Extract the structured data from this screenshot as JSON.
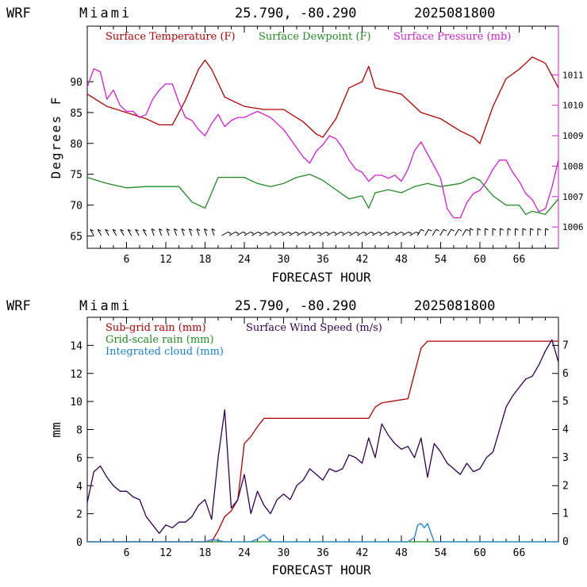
{
  "header": {
    "model": "WRF",
    "location": "Miami",
    "coords": "25.790, -80.290",
    "date": "2025081800"
  },
  "colors": {
    "temperature": "#b00000",
    "dewpoint": "#228b22",
    "pressure": "#d020d0",
    "subgrid_rain": "#b00000",
    "gridscale_rain": "#228b22",
    "cloud": "#1e7fd0",
    "wind": "#300050"
  },
  "chart_data": [
    {
      "type": "line",
      "title": "",
      "xlabel": "FORECAST HOUR",
      "ylabel": "Degrees F",
      "y2label": "",
      "xlim": [
        0,
        72
      ],
      "ylim": [
        63,
        99
      ],
      "y2lim": [
        1005.3,
        1012.6
      ],
      "xticks": [
        "6",
        "12",
        "18",
        "24",
        "30",
        "36",
        "42",
        "48",
        "54",
        "60",
        "66"
      ],
      "yticks": [
        "65",
        "70",
        "75",
        "80",
        "85",
        "90"
      ],
      "y2ticks": [
        "1006",
        "1007",
        "1008",
        "1009",
        "1010",
        "1011"
      ],
      "legend": [
        "Surface Temperature (F)",
        "Surface Dewpoint (F)",
        "Surface Pressure (mb)"
      ],
      "series": [
        {
          "name": "Surface Temperature (F)",
          "axis": "left",
          "x": [
            0,
            3,
            6,
            9,
            11,
            13,
            15,
            17,
            18,
            19,
            21,
            24,
            27,
            30,
            33,
            35,
            36,
            38,
            40,
            42,
            43,
            44,
            46,
            48,
            51,
            54,
            57,
            59,
            60,
            62,
            64,
            66,
            67,
            68,
            70,
            72
          ],
          "y": [
            88,
            86,
            85,
            84,
            83,
            83,
            87,
            92,
            93.5,
            92,
            87.5,
            86,
            85.5,
            85.5,
            83.5,
            81.5,
            81,
            84,
            89,
            90,
            92.5,
            89,
            88.5,
            88,
            85,
            84,
            82,
            81,
            80,
            86,
            90.5,
            92,
            93,
            94,
            93,
            89
          ]
        },
        {
          "name": "Surface Dewpoint (F)",
          "axis": "left",
          "x": [
            0,
            3,
            6,
            9,
            12,
            14,
            16,
            18,
            19,
            20,
            22,
            24,
            26,
            28,
            30,
            32,
            34,
            36,
            38,
            40,
            42,
            43,
            44,
            46,
            48,
            50,
            52,
            54,
            57,
            59,
            60,
            62,
            64,
            66,
            67,
            68,
            70,
            72
          ],
          "y": [
            74.5,
            73.5,
            72.8,
            73,
            73,
            73,
            70.5,
            69.5,
            72,
            74.5,
            74.5,
            74.5,
            73.5,
            73,
            73.5,
            74.5,
            75,
            74,
            72.5,
            71,
            71.5,
            69.5,
            72,
            72.5,
            72,
            73,
            73.5,
            73,
            73.5,
            74.5,
            74,
            71.5,
            70,
            70,
            68.5,
            69,
            68.5,
            71
          ]
        },
        {
          "name": "Surface Pressure (mb)",
          "axis": "right",
          "x": [
            0,
            1,
            2,
            3,
            4,
            5,
            6,
            7,
            8,
            9,
            10,
            11,
            12,
            13,
            14,
            15,
            16,
            17,
            18,
            19,
            20,
            21,
            22,
            23,
            24,
            25,
            26,
            27,
            28,
            29,
            30,
            31,
            32,
            33,
            34,
            35,
            36,
            37,
            38,
            39,
            40,
            41,
            42,
            43,
            44,
            45,
            46,
            47,
            48,
            49,
            50,
            51,
            52,
            53,
            54,
            55,
            56,
            57,
            58,
            59,
            60,
            61,
            62,
            63,
            64,
            65,
            66,
            67,
            68,
            69,
            70,
            71,
            72
          ],
          "y": [
            1010.6,
            1011.2,
            1011.1,
            1010.2,
            1010.5,
            1010.0,
            1009.8,
            1009.8,
            1009.6,
            1009.7,
            1010.2,
            1010.5,
            1010.7,
            1010.7,
            1010.1,
            1009.6,
            1009.5,
            1009.2,
            1009.0,
            1009.4,
            1009.7,
            1009.3,
            1009.5,
            1009.6,
            1009.6,
            1009.7,
            1009.8,
            1009.7,
            1009.6,
            1009.4,
            1009.2,
            1008.9,
            1008.6,
            1008.3,
            1008.1,
            1008.5,
            1008.7,
            1009.0,
            1008.9,
            1008.6,
            1008.2,
            1007.9,
            1007.8,
            1007.5,
            1007.7,
            1007.7,
            1007.6,
            1007.7,
            1007.5,
            1007.9,
            1008.5,
            1008.8,
            1008.4,
            1008.0,
            1007.6,
            1006.6,
            1006.3,
            1006.3,
            1006.8,
            1007.1,
            1007.2,
            1007.5,
            1007.9,
            1008.2,
            1008.2,
            1007.8,
            1007.5,
            1007.1,
            1006.9,
            1006.5,
            1006.6,
            1007.3,
            1008.2
          ]
        }
      ]
    },
    {
      "type": "line",
      "title": "",
      "xlabel": "FORECAST HOUR",
      "ylabel": "mm",
      "y2label": "",
      "xlim": [
        0,
        72
      ],
      "ylim": [
        0,
        16
      ],
      "y2lim": [
        0,
        8
      ],
      "xticks": [
        "6",
        "12",
        "18",
        "24",
        "30",
        "36",
        "42",
        "48",
        "54",
        "60",
        "66"
      ],
      "yticks": [
        "0",
        "2",
        "4",
        "6",
        "8",
        "10",
        "12",
        "14"
      ],
      "y2ticks": [
        "0",
        "1",
        "2",
        "3",
        "4",
        "5",
        "6",
        "7"
      ],
      "legend": [
        "Sub-grid rain (mm)",
        "Grid-scale rain (mm)",
        "Integrated cloud (mm)",
        "Surface Wind Speed (m/s)"
      ],
      "series": [
        {
          "name": "Sub-grid rain (mm)",
          "axis": "left",
          "x": [
            0,
            19,
            20,
            21,
            22,
            23,
            24,
            25,
            26,
            27,
            28,
            43,
            44,
            45,
            49,
            50,
            51,
            52,
            72
          ],
          "y": [
            0,
            0,
            0.8,
            1.8,
            2.2,
            3.0,
            7.0,
            7.5,
            8.2,
            8.8,
            8.8,
            8.8,
            9.6,
            9.9,
            10.2,
            12.0,
            13.8,
            14.3,
            14.3
          ]
        },
        {
          "name": "Grid-scale rain (mm)",
          "axis": "left",
          "x": [
            0,
            72
          ],
          "y": [
            0,
            0
          ]
        },
        {
          "name": "Integrated cloud (mm)",
          "axis": "left",
          "x": [
            0,
            18,
            19,
            20,
            21,
            25,
            26,
            27,
            28,
            49,
            50,
            50.5,
            51,
            51.5,
            52,
            53,
            72
          ],
          "y": [
            0,
            0,
            0.15,
            0.1,
            0,
            0,
            0.2,
            0.5,
            0,
            0,
            0.3,
            1.2,
            1.3,
            1.0,
            1.3,
            0,
            0
          ]
        },
        {
          "name": "Surface Wind Speed (m/s)",
          "axis": "right",
          "x": [
            0,
            1,
            2,
            3,
            4,
            5,
            6,
            7,
            8,
            9,
            10,
            11,
            12,
            13,
            14,
            15,
            16,
            17,
            18,
            19,
            20,
            21,
            22,
            23,
            24,
            25,
            26,
            27,
            28,
            29,
            30,
            31,
            32,
            33,
            34,
            35,
            36,
            37,
            38,
            39,
            40,
            41,
            42,
            43,
            44,
            45,
            46,
            47,
            48,
            49,
            50,
            51,
            52,
            53,
            54,
            55,
            56,
            57,
            58,
            59,
            60,
            61,
            62,
            63,
            64,
            65,
            66,
            67,
            68,
            69,
            70,
            71,
            72
          ],
          "y": [
            1.4,
            2.5,
            2.7,
            2.3,
            2.0,
            1.8,
            1.8,
            1.6,
            1.5,
            0.9,
            0.6,
            0.3,
            0.6,
            0.5,
            0.7,
            0.7,
            0.9,
            1.3,
            1.5,
            0.8,
            3.0,
            4.7,
            1.2,
            1.5,
            2.4,
            1.0,
            1.8,
            1.3,
            1.0,
            1.5,
            1.7,
            1.5,
            2.0,
            2.2,
            2.6,
            2.4,
            2.2,
            2.6,
            2.5,
            2.6,
            3.1,
            3.0,
            2.8,
            3.7,
            3.0,
            4.2,
            3.8,
            3.5,
            3.3,
            3.4,
            3.0,
            3.7,
            2.3,
            3.5,
            3.2,
            2.8,
            2.6,
            2.4,
            2.8,
            2.5,
            2.6,
            3.0,
            3.2,
            4.0,
            4.8,
            5.2,
            5.5,
            5.8,
            5.9,
            6.3,
            6.8,
            7.2,
            6.4
          ]
        }
      ]
    }
  ]
}
